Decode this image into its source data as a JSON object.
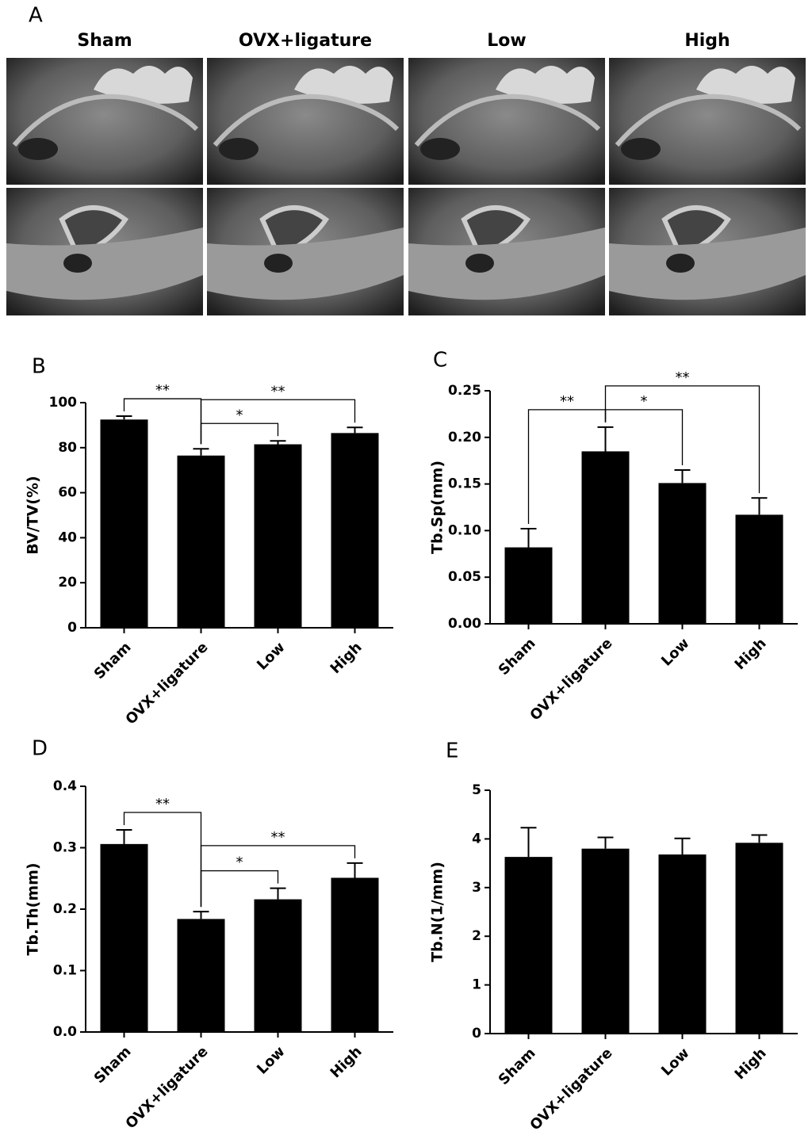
{
  "panel_a": {
    "label": "A",
    "columns": [
      "Sham",
      "OVX+ligature",
      "Low",
      "High"
    ]
  },
  "chart_data": [
    {
      "type": "bar",
      "panel_label": "B",
      "y_label": "BV/TV(%)",
      "categories": [
        "Sham",
        "OVX+ligature",
        "Low",
        "High"
      ],
      "values": [
        92.5,
        76.5,
        81.5,
        86.5
      ],
      "errors": [
        1.5,
        3,
        1.5,
        2.5
      ],
      "color": "#000000",
      "ylim": [
        0,
        100
      ],
      "yticks": [
        0,
        20,
        40,
        60,
        80,
        100
      ],
      "comparisons": [
        {
          "from": "Sham",
          "to": "OVX+ligature",
          "label": "**"
        },
        {
          "from": "OVX+ligature",
          "to": "Low",
          "label": "*"
        },
        {
          "from": "OVX+ligature",
          "to": "High",
          "label": "**"
        }
      ]
    },
    {
      "type": "bar",
      "panel_label": "C",
      "y_label": "Tb.Sp(mm)",
      "categories": [
        "Sham",
        "OVX+ligature",
        "Low",
        "High"
      ],
      "values": [
        0.082,
        0.185,
        0.151,
        0.117
      ],
      "errors": [
        0.02,
        0.026,
        0.014,
        0.018
      ],
      "color": "#000000",
      "ylim": [
        0,
        0.25
      ],
      "yticks": [
        {
          "value": 0,
          "label": "0.00"
        },
        0.05,
        {
          "value": 0.1,
          "label": "0.10"
        },
        0.15,
        {
          "value": 0.2,
          "label": "0.20"
        },
        0.25
      ],
      "comparisons": [
        {
          "from": "Sham",
          "to": "OVX+ligature",
          "label": "**"
        },
        {
          "from": "OVX+ligature",
          "to": "Low",
          "label": "*"
        },
        {
          "from": "OVX+ligature",
          "to": "High",
          "label": "**"
        }
      ]
    },
    {
      "type": "bar",
      "panel_label": "D",
      "y_label": "Tb.Th(mm)",
      "categories": [
        "Sham",
        "OVX+ligature",
        "Low",
        "High"
      ],
      "values": [
        0.306,
        0.184,
        0.216,
        0.251
      ],
      "errors": [
        0.023,
        0.012,
        0.018,
        0.024
      ],
      "color": "#000000",
      "ylim": [
        0,
        0.4
      ],
      "yticks": [
        {
          "value": 0,
          "label": "0.0"
        },
        0.1,
        0.2,
        0.3,
        0.4
      ],
      "comparisons": [
        {
          "from": "Sham",
          "to": "OVX+ligature",
          "label": "**"
        },
        {
          "from": "OVX+ligature",
          "to": "Low",
          "label": "*"
        },
        {
          "from": "OVX+ligature",
          "to": "High",
          "label": "**"
        }
      ]
    },
    {
      "type": "bar",
      "panel_label": "E",
      "y_label": "Tb.N(1/mm)",
      "categories": [
        "Sham",
        "OVX+ligature",
        "Low",
        "High"
      ],
      "values": [
        3.63,
        3.8,
        3.68,
        3.92
      ],
      "errors": [
        0.6,
        0.23,
        0.33,
        0.16
      ],
      "color": "#000000",
      "ylim": [
        0,
        5
      ],
      "yticks": [
        0,
        1,
        2,
        3,
        4,
        5
      ],
      "comparisons": []
    }
  ]
}
